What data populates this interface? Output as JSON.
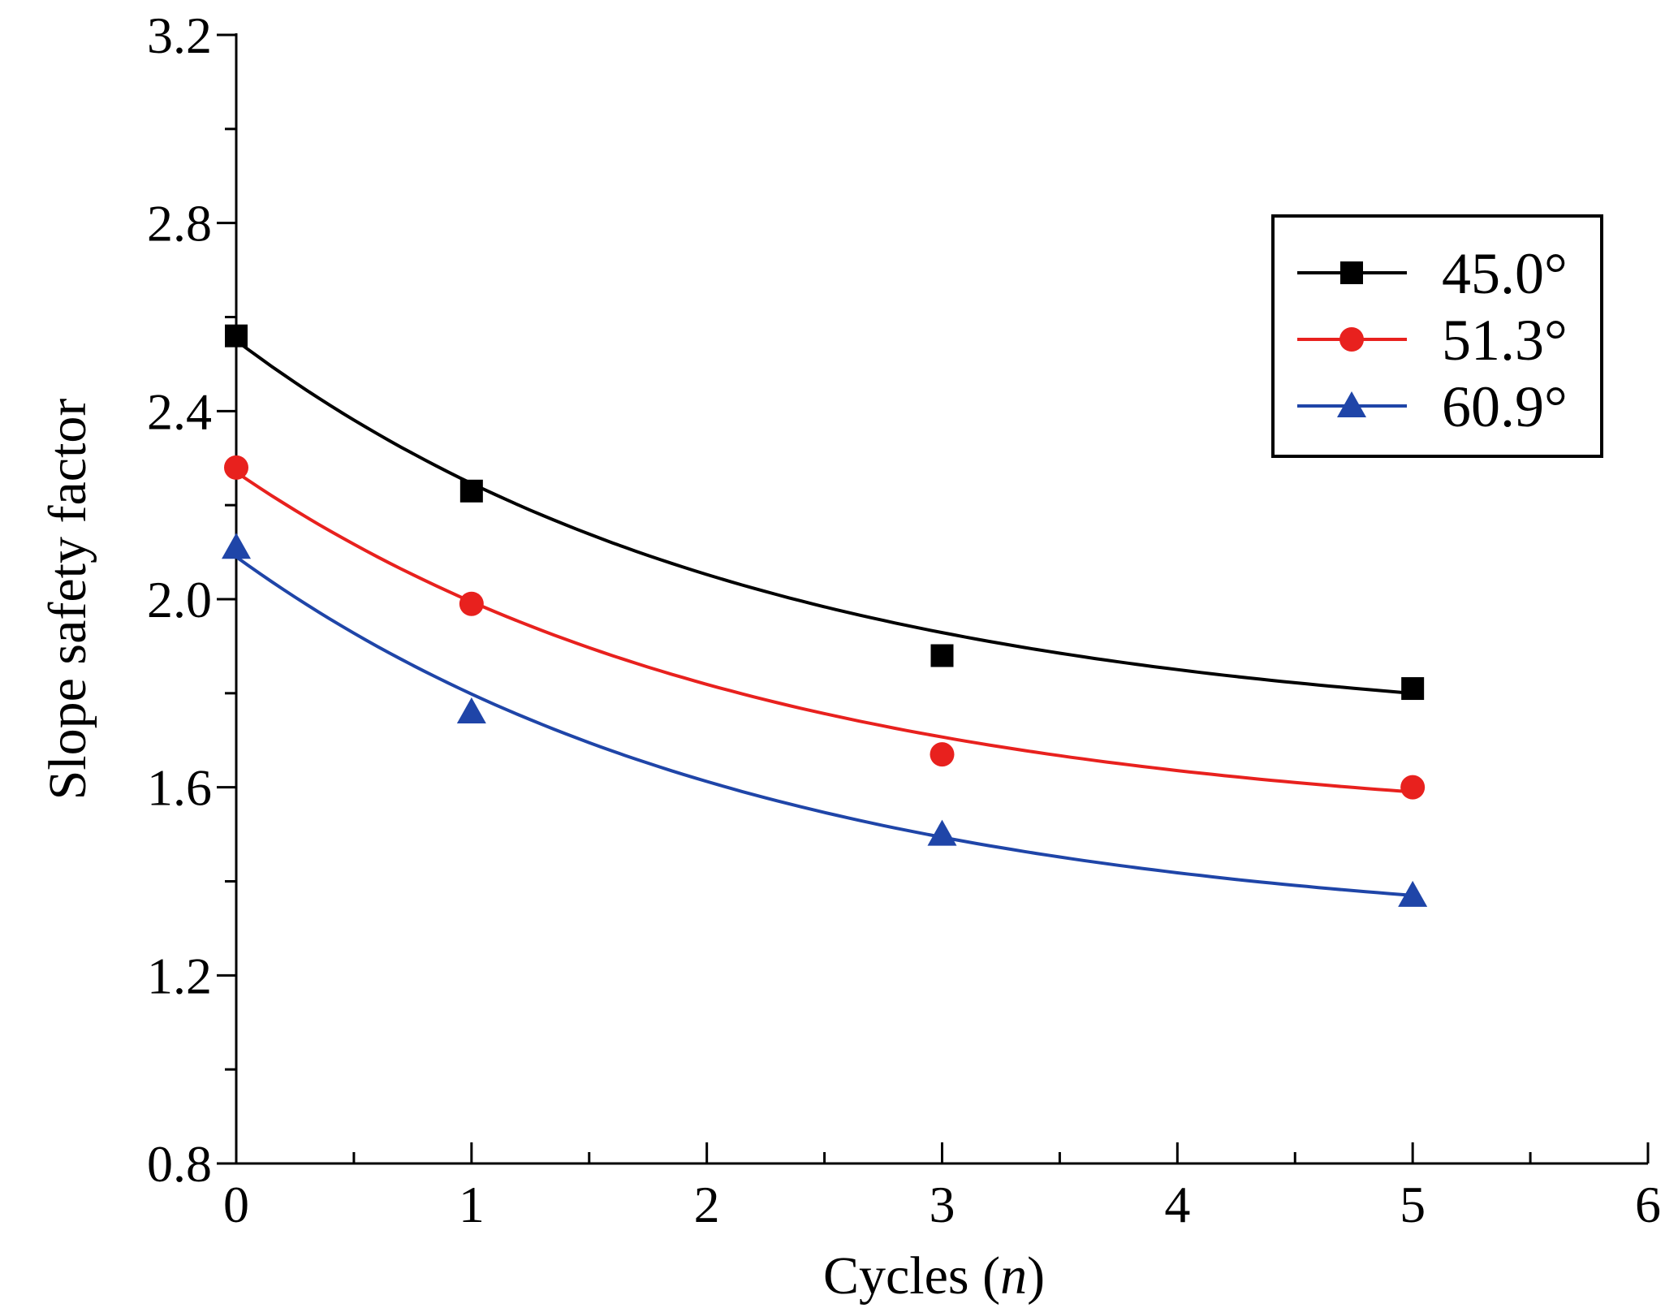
{
  "chart_data": {
    "type": "line",
    "title": "",
    "xlabel": "Cycles (n)",
    "xlabel_parts": {
      "prefix": "Cycles (",
      "italic": "n",
      "suffix": ")"
    },
    "ylabel": "Slope safety factor",
    "xlim": [
      0,
      6
    ],
    "ylim": [
      0.8,
      3.2
    ],
    "xticks": [
      0,
      1,
      2,
      3,
      4,
      5,
      6
    ],
    "xtick_labels": [
      "0",
      "1",
      "2",
      "3",
      "4",
      "5",
      "6"
    ],
    "yticks": [
      0.8,
      1.2,
      1.6,
      2.0,
      2.4,
      2.8,
      3.2
    ],
    "ytick_labels": [
      "0.8",
      "1.2",
      "1.6",
      "2.0",
      "2.4",
      "2.8",
      "3.2"
    ],
    "grid": false,
    "legend_position": "top-right",
    "series": [
      {
        "name": "45.0°",
        "color": "#000000",
        "marker": "square",
        "x": [
          0,
          1,
          3,
          5
        ],
        "y": [
          2.56,
          2.23,
          1.88,
          1.81
        ],
        "fit_y0": 2.55,
        "fit_y5": 1.8
      },
      {
        "name": "51.3°",
        "color": "#e8211e",
        "marker": "circle",
        "x": [
          0,
          1,
          3,
          5
        ],
        "y": [
          2.28,
          1.99,
          1.67,
          1.6
        ],
        "fit_y0": 2.27,
        "fit_y5": 1.59
      },
      {
        "name": "60.9°",
        "color": "#1f45a8",
        "marker": "triangle",
        "x": [
          0,
          1,
          3,
          5
        ],
        "y": [
          2.11,
          1.76,
          1.5,
          1.37
        ],
        "fit_y0": 2.09,
        "fit_y5": 1.37
      }
    ]
  }
}
